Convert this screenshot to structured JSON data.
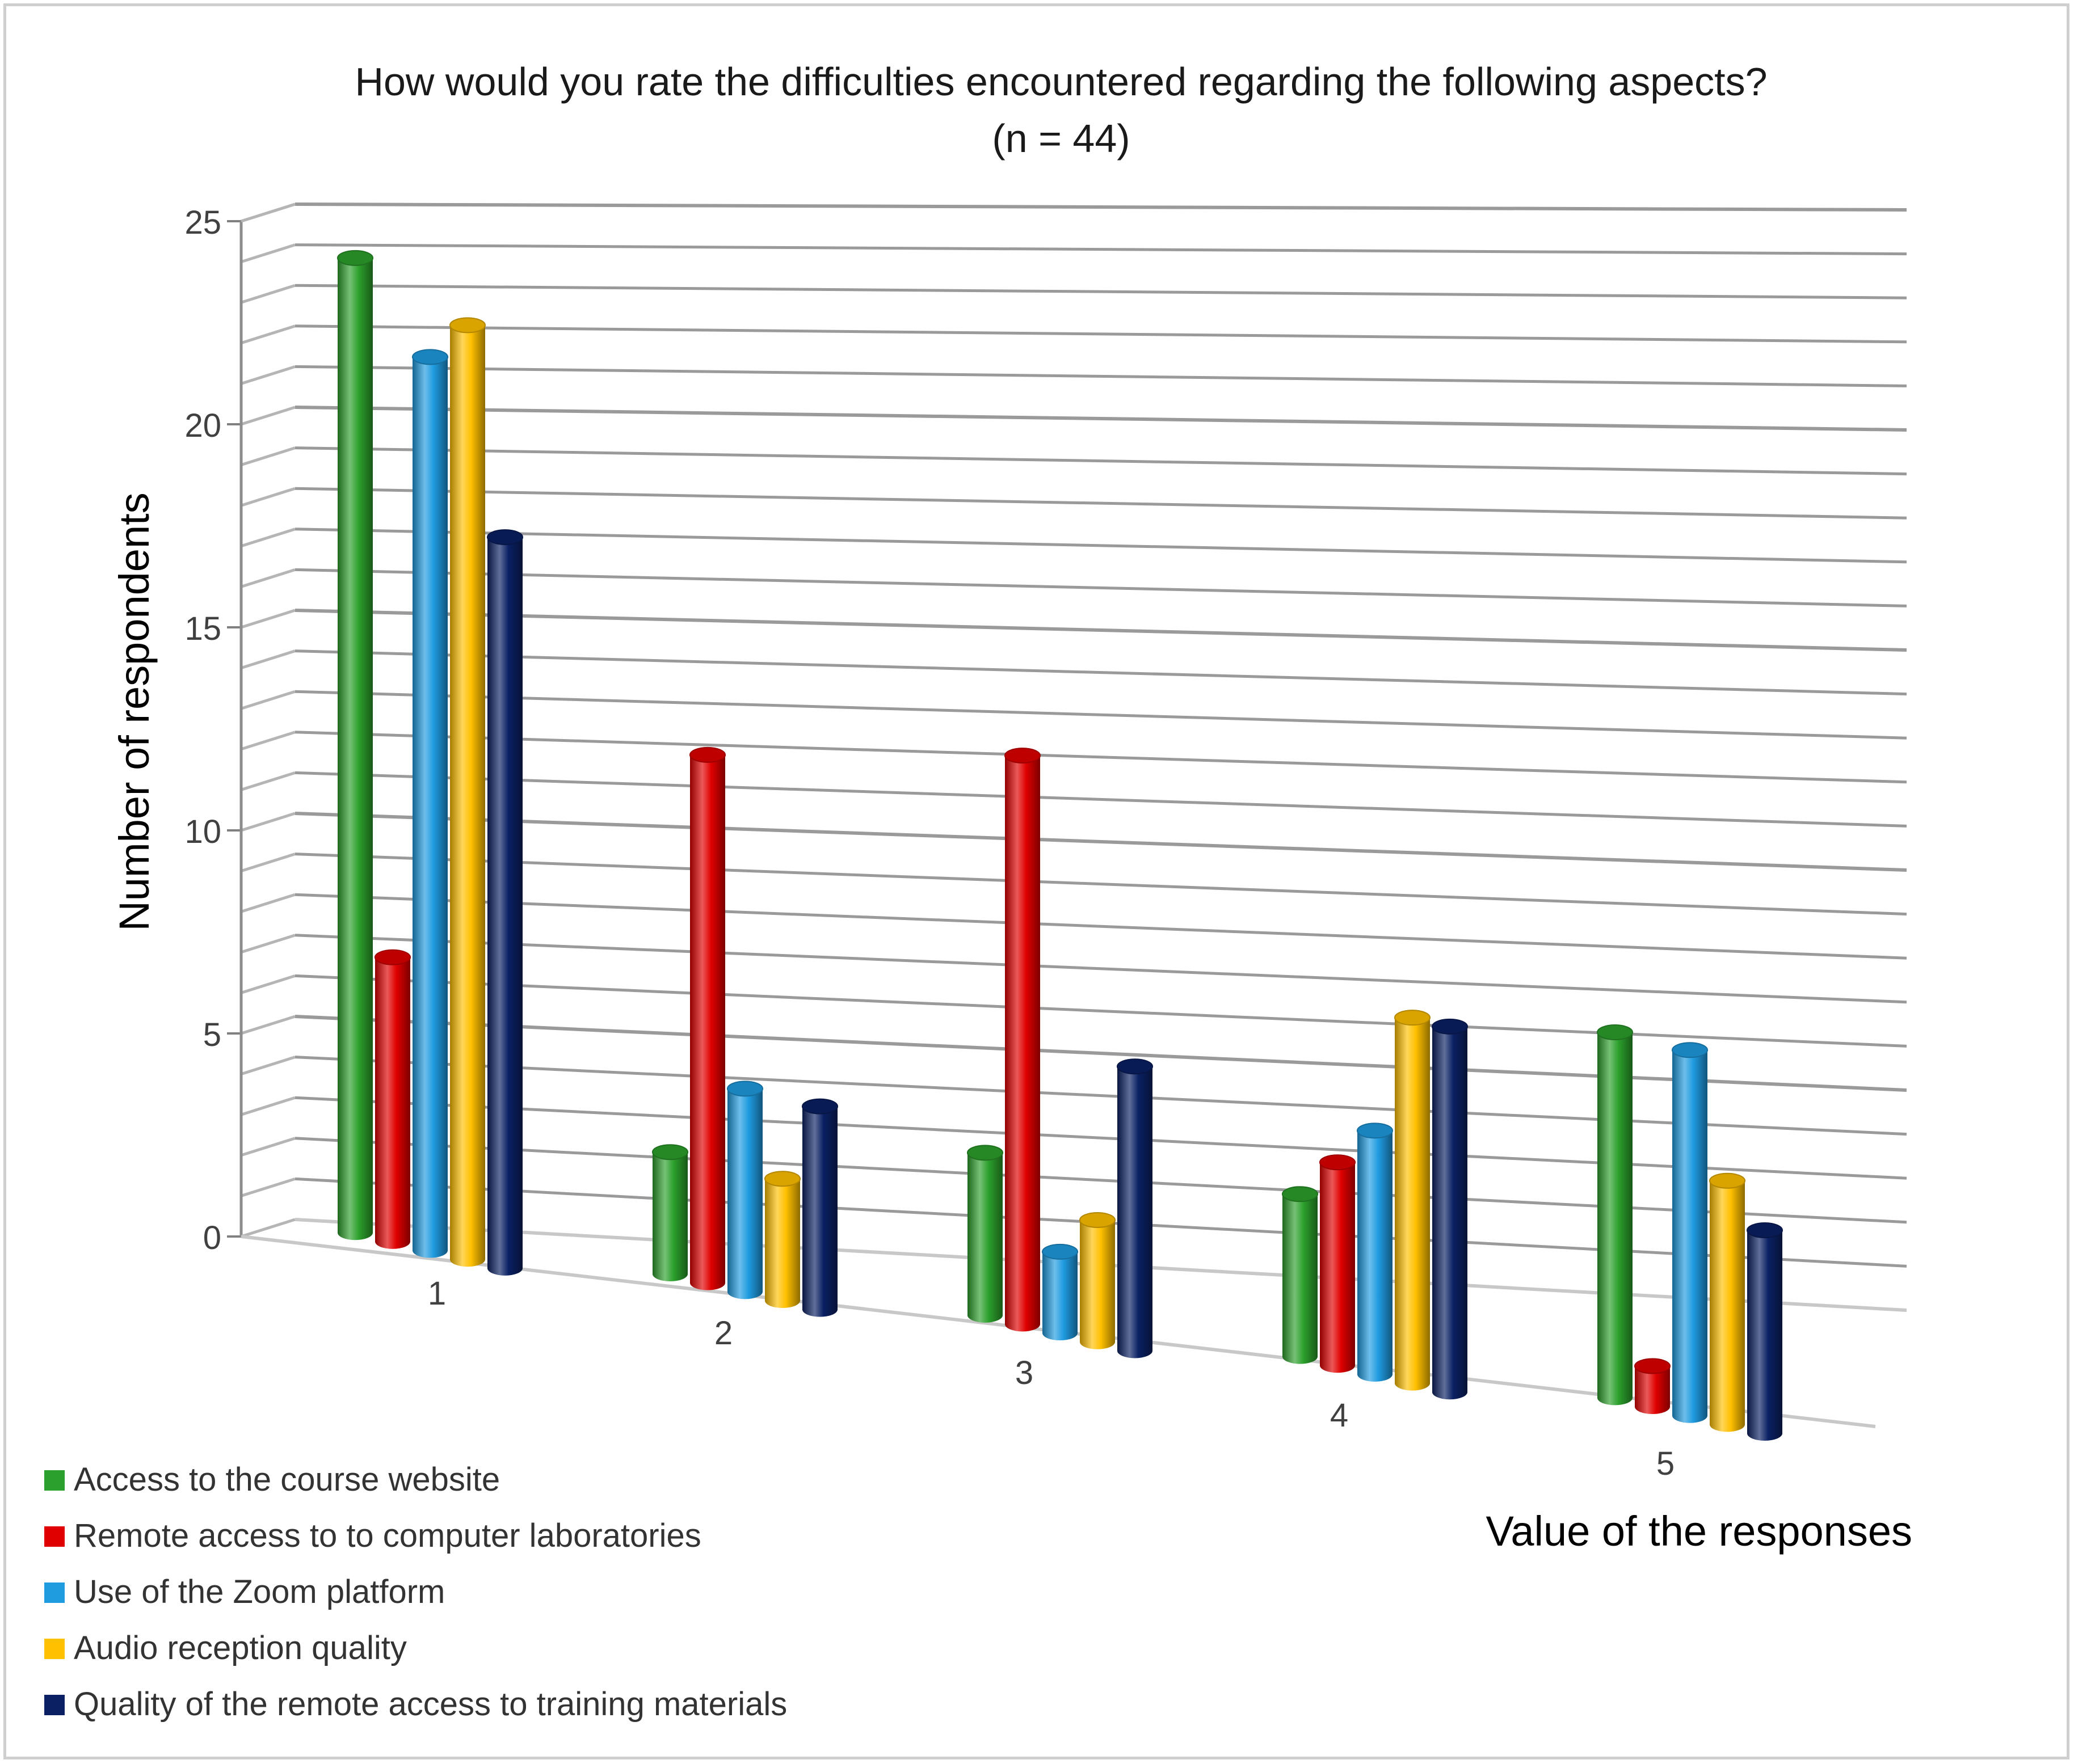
{
  "chart_data": {
    "type": "bar",
    "subtype": "3d-cylinder-clustered",
    "title": "How would you rate the difficulties encountered regarding the following aspects?",
    "subtitle": "(n = 44)",
    "xlabel": "Value of the responses",
    "ylabel": "Number of respondents",
    "categories": [
      "1",
      "2",
      "3",
      "4",
      "5"
    ],
    "ylim": [
      0,
      25
    ],
    "yticks": [
      "0",
      "5",
      "10",
      "15",
      "20",
      "25"
    ],
    "grid": true,
    "legend_position": "bottom-left",
    "series": [
      {
        "name": "Access to the course website",
        "color": "#2ca02c",
        "values": [
          24,
          3,
          4,
          4,
          9
        ]
      },
      {
        "name": "Remote access to to computer laboratories",
        "color": "#e00000",
        "values": [
          7,
          13,
          14,
          5,
          1
        ]
      },
      {
        "name": "Use of the Zoom platform",
        "color": "#1f9be0",
        "values": [
          22,
          5,
          2,
          6,
          9
        ]
      },
      {
        "name": "Audio reception quality",
        "color": "#ffc000",
        "values": [
          23,
          3,
          3,
          9,
          6
        ]
      },
      {
        "name": "Quality of the remote access to training materials",
        "color": "#0a2063",
        "values": [
          18,
          5,
          7,
          9,
          5
        ]
      }
    ]
  }
}
